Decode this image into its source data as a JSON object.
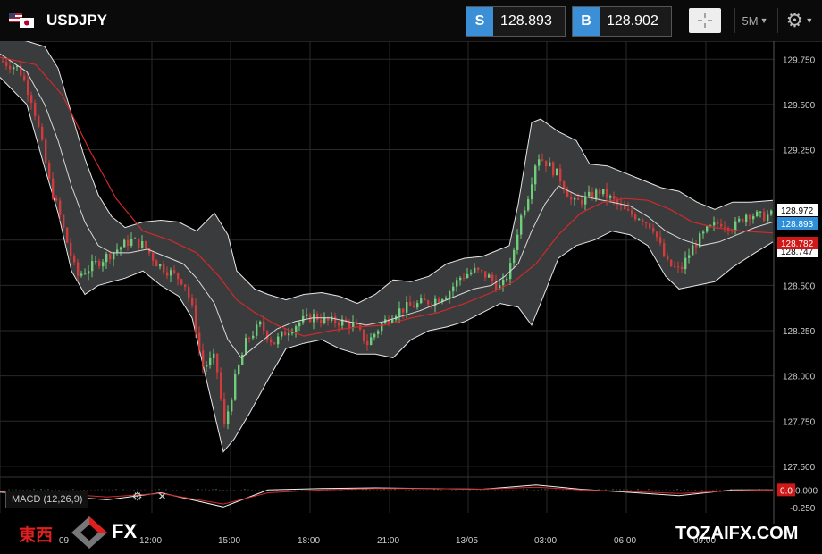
{
  "header": {
    "symbol": "USDJPY",
    "sell_tag": "S",
    "sell_price": "128.893",
    "buy_tag": "B",
    "buy_price": "128.902",
    "timeframe": "5M",
    "flag_icon": "us-japan-flags-icon"
  },
  "indicator": {
    "label": "MACD (12,26,9)",
    "macd_value_tag": "0.0",
    "macd_ticks": [
      "0.000",
      "-0.250"
    ]
  },
  "watermark": {
    "cn": "東西",
    "fx": "FX",
    "site": "TOZAIFX.COM"
  },
  "colors": {
    "accent_blue": "#3b8fd6",
    "up": "#6fce7a",
    "down": "#d23b3b",
    "band_fill": "#3a3b3d",
    "ma_red": "#d02a2a",
    "price_tag_blue": "#2e8fd8",
    "price_tag_red": "#d01818"
  },
  "chart_data": {
    "type": "line",
    "title": "USDJPY 5M",
    "ylim": [
      127.45,
      129.85
    ],
    "y_ticks": [
      "129.750",
      "129.500",
      "129.250",
      "128.750",
      "128.500",
      "128.250",
      "128.000",
      "127.750",
      "127.500"
    ],
    "x_ticks": [
      "09",
      "12:00",
      "15:00",
      "18:00",
      "21:00",
      "13/05",
      "03:00",
      "06:00",
      "09:00"
    ],
    "price_tags": {
      "upper": "128.972",
      "current": "128.893",
      "red": "128.782",
      "lower": "128.747"
    },
    "series": [
      {
        "name": "Close",
        "points": [
          [
            0,
            129.74
          ],
          [
            20,
            129.7
          ],
          [
            35,
            129.52
          ],
          [
            45,
            129.3
          ],
          [
            55,
            129.05
          ],
          [
            65,
            128.9
          ],
          [
            75,
            128.72
          ],
          [
            85,
            128.55
          ],
          [
            100,
            128.6
          ],
          [
            115,
            128.65
          ],
          [
            130,
            128.7
          ],
          [
            145,
            128.75
          ],
          [
            160,
            128.72
          ],
          [
            175,
            128.62
          ],
          [
            190,
            128.57
          ],
          [
            205,
            128.52
          ],
          [
            215,
            128.35
          ],
          [
            225,
            128.05
          ],
          [
            240,
            128.1
          ],
          [
            250,
            127.72
          ],
          [
            262,
            127.98
          ],
          [
            275,
            128.2
          ],
          [
            290,
            128.28
          ],
          [
            305,
            128.18
          ],
          [
            320,
            128.25
          ],
          [
            335,
            128.3
          ],
          [
            350,
            128.33
          ],
          [
            365,
            128.3
          ],
          [
            380,
            128.3
          ],
          [
            395,
            128.28
          ],
          [
            410,
            128.18
          ],
          [
            425,
            128.28
          ],
          [
            440,
            128.35
          ],
          [
            455,
            128.38
          ],
          [
            470,
            128.4
          ],
          [
            485,
            128.42
          ],
          [
            500,
            128.46
          ],
          [
            515,
            128.55
          ],
          [
            530,
            128.58
          ],
          [
            545,
            128.55
          ],
          [
            560,
            128.48
          ],
          [
            570,
            128.6
          ],
          [
            580,
            128.85
          ],
          [
            590,
            129.0
          ],
          [
            600,
            129.22
          ],
          [
            610,
            129.18
          ],
          [
            625,
            129.1
          ],
          [
            640,
            128.95
          ],
          [
            655,
            128.98
          ],
          [
            670,
            129.02
          ],
          [
            685,
            128.97
          ],
          [
            700,
            128.9
          ],
          [
            715,
            128.88
          ],
          [
            730,
            128.82
          ],
          [
            745,
            128.62
          ],
          [
            760,
            128.58
          ],
          [
            775,
            128.72
          ],
          [
            790,
            128.8
          ],
          [
            805,
            128.85
          ],
          [
            820,
            128.82
          ],
          [
            835,
            128.9
          ],
          [
            850,
            128.88
          ],
          [
            865,
            128.89
          ]
        ]
      },
      {
        "name": "Upper band",
        "points": [
          [
            0,
            129.88
          ],
          [
            30,
            129.85
          ],
          [
            50,
            129.82
          ],
          [
            65,
            129.7
          ],
          [
            80,
            129.45
          ],
          [
            95,
            129.2
          ],
          [
            110,
            129.0
          ],
          [
            125,
            128.88
          ],
          [
            140,
            128.82
          ],
          [
            160,
            128.85
          ],
          [
            180,
            128.86
          ],
          [
            200,
            128.85
          ],
          [
            220,
            128.8
          ],
          [
            240,
            128.9
          ],
          [
            255,
            128.78
          ],
          [
            265,
            128.58
          ],
          [
            285,
            128.48
          ],
          [
            300,
            128.45
          ],
          [
            320,
            128.42
          ],
          [
            340,
            128.45
          ],
          [
            360,
            128.46
          ],
          [
            380,
            128.44
          ],
          [
            400,
            128.4
          ],
          [
            420,
            128.45
          ],
          [
            440,
            128.53
          ],
          [
            460,
            128.52
          ],
          [
            480,
            128.55
          ],
          [
            500,
            128.62
          ],
          [
            520,
            128.65
          ],
          [
            540,
            128.66
          ],
          [
            560,
            128.7
          ],
          [
            570,
            128.72
          ],
          [
            580,
            128.95
          ],
          [
            595,
            129.4
          ],
          [
            605,
            129.42
          ],
          [
            625,
            129.35
          ],
          [
            645,
            129.3
          ],
          [
            660,
            129.17
          ],
          [
            680,
            129.16
          ],
          [
            700,
            129.12
          ],
          [
            720,
            129.08
          ],
          [
            740,
            129.04
          ],
          [
            760,
            129.02
          ],
          [
            780,
            128.96
          ],
          [
            800,
            128.92
          ],
          [
            820,
            128.96
          ],
          [
            840,
            128.96
          ],
          [
            865,
            128.97
          ]
        ]
      },
      {
        "name": "Lower band",
        "points": [
          [
            0,
            129.65
          ],
          [
            30,
            129.5
          ],
          [
            50,
            129.15
          ],
          [
            65,
            128.9
          ],
          [
            80,
            128.58
          ],
          [
            95,
            128.45
          ],
          [
            110,
            128.5
          ],
          [
            125,
            128.52
          ],
          [
            140,
            128.54
          ],
          [
            160,
            128.58
          ],
          [
            180,
            128.5
          ],
          [
            200,
            128.44
          ],
          [
            215,
            128.32
          ],
          [
            230,
            128.0
          ],
          [
            250,
            127.58
          ],
          [
            262,
            127.65
          ],
          [
            280,
            127.8
          ],
          [
            300,
            127.98
          ],
          [
            320,
            128.15
          ],
          [
            340,
            128.18
          ],
          [
            360,
            128.2
          ],
          [
            380,
            128.15
          ],
          [
            400,
            128.12
          ],
          [
            420,
            128.12
          ],
          [
            440,
            128.1
          ],
          [
            460,
            128.2
          ],
          [
            480,
            128.25
          ],
          [
            500,
            128.27
          ],
          [
            520,
            128.3
          ],
          [
            540,
            128.35
          ],
          [
            560,
            128.4
          ],
          [
            580,
            128.38
          ],
          [
            595,
            128.28
          ],
          [
            605,
            128.4
          ],
          [
            625,
            128.65
          ],
          [
            645,
            128.72
          ],
          [
            665,
            128.75
          ],
          [
            685,
            128.8
          ],
          [
            705,
            128.78
          ],
          [
            725,
            128.72
          ],
          [
            745,
            128.55
          ],
          [
            760,
            128.48
          ],
          [
            780,
            128.5
          ],
          [
            800,
            128.52
          ],
          [
            820,
            128.6
          ],
          [
            845,
            128.68
          ],
          [
            865,
            128.74
          ]
        ]
      },
      {
        "name": "Middle band",
        "points": [
          [
            0,
            129.78
          ],
          [
            30,
            129.68
          ],
          [
            50,
            129.5
          ],
          [
            65,
            129.3
          ],
          [
            80,
            129.05
          ],
          [
            95,
            128.85
          ],
          [
            110,
            128.72
          ],
          [
            125,
            128.68
          ],
          [
            145,
            128.68
          ],
          [
            165,
            128.7
          ],
          [
            185,
            128.66
          ],
          [
            205,
            128.62
          ],
          [
            220,
            128.54
          ],
          [
            240,
            128.4
          ],
          [
            255,
            128.2
          ],
          [
            270,
            128.1
          ],
          [
            290,
            128.18
          ],
          [
            310,
            128.26
          ],
          [
            330,
            128.3
          ],
          [
            350,
            128.32
          ],
          [
            370,
            128.32
          ],
          [
            390,
            128.3
          ],
          [
            410,
            128.28
          ],
          [
            430,
            128.3
          ],
          [
            450,
            128.33
          ],
          [
            470,
            128.36
          ],
          [
            490,
            128.4
          ],
          [
            510,
            128.44
          ],
          [
            530,
            128.48
          ],
          [
            550,
            128.5
          ],
          [
            565,
            128.55
          ],
          [
            580,
            128.62
          ],
          [
            595,
            128.8
          ],
          [
            610,
            128.95
          ],
          [
            625,
            129.05
          ],
          [
            645,
            129.0
          ],
          [
            665,
            128.98
          ],
          [
            685,
            128.96
          ],
          [
            705,
            128.94
          ],
          [
            725,
            128.88
          ],
          [
            745,
            128.8
          ],
          [
            765,
            128.75
          ],
          [
            785,
            128.72
          ],
          [
            805,
            128.74
          ],
          [
            825,
            128.78
          ],
          [
            845,
            128.82
          ],
          [
            865,
            128.85
          ]
        ]
      },
      {
        "name": "Moving average",
        "points": [
          [
            0,
            129.76
          ],
          [
            40,
            129.72
          ],
          [
            70,
            129.55
          ],
          [
            100,
            129.25
          ],
          [
            130,
            128.98
          ],
          [
            160,
            128.8
          ],
          [
            190,
            128.75
          ],
          [
            220,
            128.68
          ],
          [
            245,
            128.55
          ],
          [
            265,
            128.42
          ],
          [
            285,
            128.35
          ],
          [
            310,
            128.28
          ],
          [
            340,
            128.22
          ],
          [
            370,
            128.25
          ],
          [
            400,
            128.27
          ],
          [
            430,
            128.28
          ],
          [
            460,
            128.32
          ],
          [
            490,
            128.35
          ],
          [
            520,
            128.4
          ],
          [
            550,
            128.46
          ],
          [
            575,
            128.52
          ],
          [
            600,
            128.62
          ],
          [
            625,
            128.78
          ],
          [
            650,
            128.9
          ],
          [
            675,
            128.96
          ],
          [
            700,
            128.98
          ],
          [
            725,
            128.97
          ],
          [
            750,
            128.92
          ],
          [
            775,
            128.85
          ],
          [
            800,
            128.82
          ],
          [
            830,
            128.8
          ],
          [
            865,
            128.79
          ]
        ]
      }
    ],
    "macd": {
      "ylim": [
        -0.35,
        0.08
      ],
      "signal": [
        [
          0,
          -0.02
        ],
        [
          60,
          -0.05
        ],
        [
          120,
          -0.1
        ],
        [
          180,
          -0.05
        ],
        [
          250,
          -0.2
        ],
        [
          300,
          -0.04
        ],
        [
          360,
          0.0
        ],
        [
          420,
          0.02
        ],
        [
          480,
          0.02
        ],
        [
          540,
          0.01
        ],
        [
          600,
          0.04
        ],
        [
          650,
          0.0
        ],
        [
          700,
          -0.02
        ],
        [
          760,
          -0.05
        ],
        [
          820,
          -0.01
        ],
        [
          865,
          0.0
        ]
      ],
      "macd_line": [
        [
          0,
          -0.03
        ],
        [
          60,
          -0.08
        ],
        [
          120,
          -0.14
        ],
        [
          180,
          -0.04
        ],
        [
          250,
          -0.24
        ],
        [
          300,
          0.0
        ],
        [
          360,
          0.02
        ],
        [
          420,
          0.03
        ],
        [
          480,
          0.02
        ],
        [
          540,
          0.01
        ],
        [
          600,
          0.07
        ],
        [
          650,
          0.01
        ],
        [
          700,
          -0.03
        ],
        [
          760,
          -0.08
        ],
        [
          820,
          0.0
        ],
        [
          865,
          0.0
        ]
      ]
    }
  }
}
